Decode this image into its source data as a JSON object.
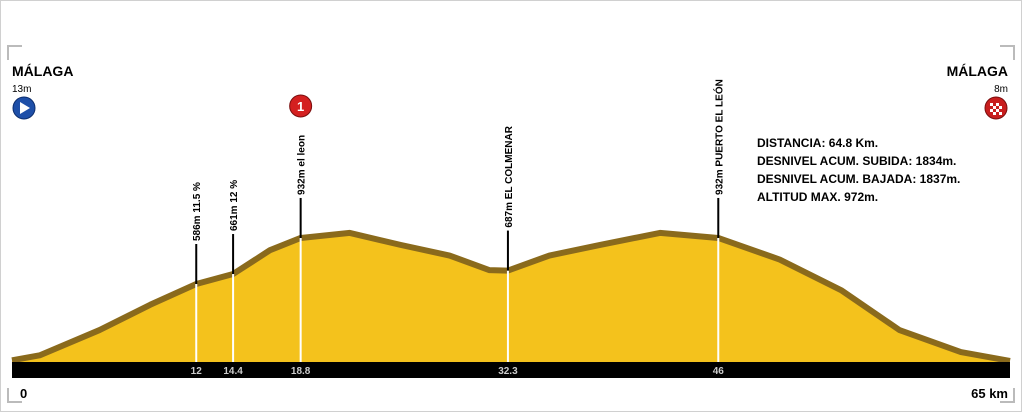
{
  "chart_data": {
    "type": "area",
    "x": [
      0,
      1.8,
      5.7,
      9,
      12,
      14.4,
      16.8,
      18.8,
      22,
      25.3,
      28.5,
      31.1,
      32.3,
      35,
      38.3,
      42.2,
      46,
      50,
      54,
      57.8,
      61.8,
      65
    ],
    "values": [
      13,
      50,
      240,
      430,
      586,
      661,
      840,
      932,
      970,
      880,
      800,
      690,
      687,
      800,
      880,
      970,
      932,
      770,
      540,
      240,
      75,
      8
    ],
    "color": "#f4c21c",
    "edge_color": "#8a6a1c",
    "xlim": [
      0,
      65
    ],
    "ylim": [
      0,
      2720
    ],
    "xticks": [
      0,
      {
        "value": 65,
        "label": "65 km"
      }
    ],
    "start": {
      "name": "MÁLAGA",
      "altitude": "13m"
    },
    "finish": {
      "name": "MÁLAGA",
      "altitude": "8m"
    },
    "sprint_marker": {
      "km": 18.8,
      "label": "1"
    },
    "annotations": [
      {
        "km": 12,
        "label": "586m  11.5 %"
      },
      {
        "km": 14.4,
        "label": "661m  12 %"
      },
      {
        "km": 18.8,
        "label": "932m  el leon"
      },
      {
        "km": 32.3,
        "label": "687m  EL COLMENAR"
      },
      {
        "km": 46,
        "label": "932m  PUERTO EL LEÓN"
      }
    ],
    "info": [
      "DISTANCIA: 64.8 Km.",
      "DESNIVEL ACUM. SUBIDA: 1834m.",
      "DESNIVEL ACUM. BAJADA: 1837m.",
      "ALTITUD MAX. 972m."
    ]
  }
}
